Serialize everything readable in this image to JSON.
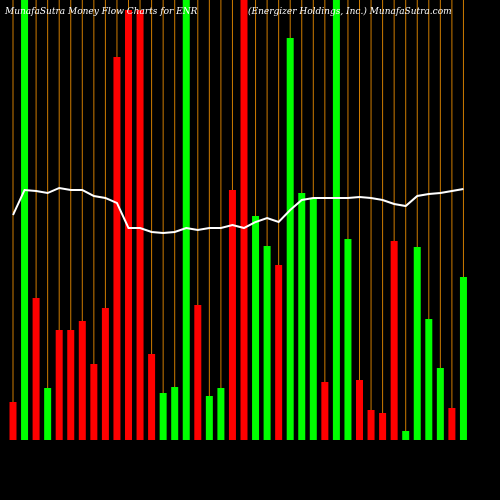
{
  "chart_data": {
    "type": "bar",
    "title": "MunafaSutra  Money Flow  Charts for ENR",
    "subtitle": "(Energizer Holdings, Inc.) MunafaSutra.com",
    "categories": [
      null,
      null,
      null,
      null,
      null,
      null,
      null,
      null,
      null,
      null,
      null,
      null,
      null,
      null,
      null,
      null,
      null,
      null,
      null,
      null,
      null,
      null,
      null,
      null,
      null,
      null,
      null,
      null,
      null,
      null,
      null,
      null,
      null,
      null,
      null,
      null,
      null,
      null,
      null,
      null
    ],
    "values": [
      38,
      440,
      142,
      52,
      110,
      110,
      119,
      76,
      132,
      383,
      430,
      430,
      86,
      47,
      53,
      440,
      135,
      44,
      52,
      250,
      440,
      224,
      194,
      175,
      402,
      247,
      241,
      58,
      440,
      201,
      60,
      30,
      27,
      199,
      9,
      193,
      121,
      72,
      32,
      163
    ],
    "colors": [
      "#ff0000",
      "#00ff00",
      "#ff0000",
      "#00ff00",
      "#ff0000",
      "#ff0000",
      "#ff0000",
      "#ff0000",
      "#ff0000",
      "#ff0000",
      "#ff0000",
      "#ff0000",
      "#ff0000",
      "#00ff00",
      "#00ff00",
      "#00ff00",
      "#ff0000",
      "#00ff00",
      "#00ff00",
      "#ff0000",
      "#ff0000",
      "#00ff00",
      "#00ff00",
      "#ff0000",
      "#00ff00",
      "#00ff00",
      "#00ff00",
      "#ff0000",
      "#00ff00",
      "#00ff00",
      "#ff0000",
      "#ff0000",
      "#ff0000",
      "#ff0000",
      "#00ff00",
      "#00ff00",
      "#00ff00",
      "#00ff00",
      "#ff0000",
      "#00ff00"
    ],
    "line_values": [
      225,
      250,
      249,
      247,
      252,
      250,
      250,
      244,
      242,
      237,
      212,
      212,
      208,
      207,
      208,
      212,
      210,
      212,
      212,
      215,
      212,
      218,
      222,
      218,
      230,
      240,
      242,
      242,
      242,
      242,
      243,
      242,
      240,
      236,
      234,
      244,
      246,
      247,
      249,
      251
    ],
    "line_color": "#ffffff",
    "guide_color": "#cc7a00",
    "ylim": [
      0,
      440
    ]
  }
}
